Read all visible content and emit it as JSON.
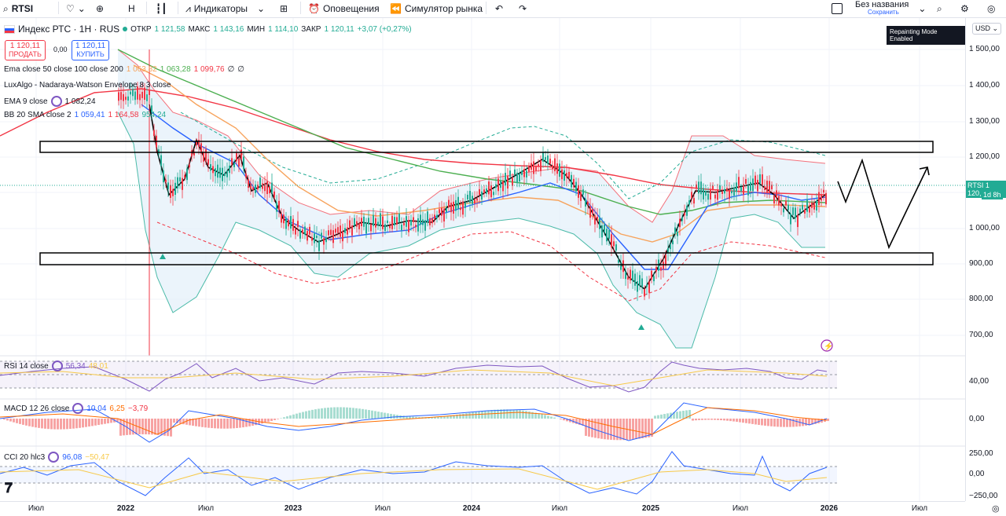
{
  "toolbar": {
    "symbol": "RTSI",
    "interval": "H",
    "indicators_label": "Индикаторы",
    "alerts_label": "Оповещения",
    "simulator_label": "Симулятор рынка",
    "layout_name": "Без названия",
    "layout_status": "Сохранить"
  },
  "header": {
    "title": "Индекс РТС · 1Н · RUS",
    "ohlc": {
      "open_label": "ОТКР",
      "open": "1 121,58",
      "high_label": "МАКС",
      "high": "1 143,16",
      "low_label": "МИН",
      "low": "1 114,10",
      "close_label": "ЗАКР",
      "close": "1 120,11",
      "change": "+3,07 (+0,27%)"
    },
    "sell_price": "1 120,11",
    "sell_label": "ПРОДАТЬ",
    "spread": "0,00",
    "buy_price": "1 120,11",
    "buy_label": "КУПИТЬ",
    "currency": "USD",
    "repainting": "Repainting Mode Enabled"
  },
  "indicators": [
    {
      "name": "Ema close 50 close 100 close 200",
      "values": [
        "1 063,82",
        "1 063,28",
        "1 099,76",
        "∅",
        "∅"
      ]
    },
    {
      "name": "LuxAlgo - Nadaraya-Watson Envelope 8 3 close",
      "values": []
    },
    {
      "name": "EMA 9 close",
      "values": [
        "1 082,24"
      ]
    },
    {
      "name": "BB 20 SMA close 2",
      "values": [
        "1 059,41",
        "1 164,58",
        "954,24"
      ]
    }
  ],
  "subpanes": {
    "rsi": {
      "name": "RSI 14 close",
      "values": [
        "56,34",
        "48,01"
      ],
      "axis": "40,00"
    },
    "macd": {
      "name": "MACD 12 26 close",
      "values": [
        "10,04",
        "6,25",
        "−3,79"
      ],
      "axis": "0,00"
    },
    "cci": {
      "name": "CCI 20 hlc3",
      "values": [
        "96,08",
        "−50,47"
      ],
      "axis": [
        "250,00",
        "0,00",
        "−250,00"
      ]
    }
  },
  "price_axis": [
    "1 500,00",
    "1 400,00",
    "1 300,00",
    "1 200,00",
    "1 000,00",
    "900,00",
    "800,00",
    "700,00"
  ],
  "last_price_badge": {
    "symbol": "RTSI",
    "price": "1 120,11",
    "countdown": "1d 8h"
  },
  "time_axis": [
    "Июл",
    "2022",
    "Июл",
    "2023",
    "Июл",
    "2024",
    "Июл",
    "2025",
    "Июл",
    "2026",
    "Июл"
  ],
  "colors": {
    "up": "#22ab94",
    "down": "#f23645",
    "ema50": "#f7a35c",
    "ema100": "#4caf50",
    "ema200": "#f23645",
    "ema9": "#000000",
    "bb_basis": "#2962ff",
    "bb_fill": "#eaf4fb",
    "rsi": "#7e57c2",
    "macd": "#2962ff",
    "signal": "#ff6d00",
    "cci": "#2962ff"
  }
}
